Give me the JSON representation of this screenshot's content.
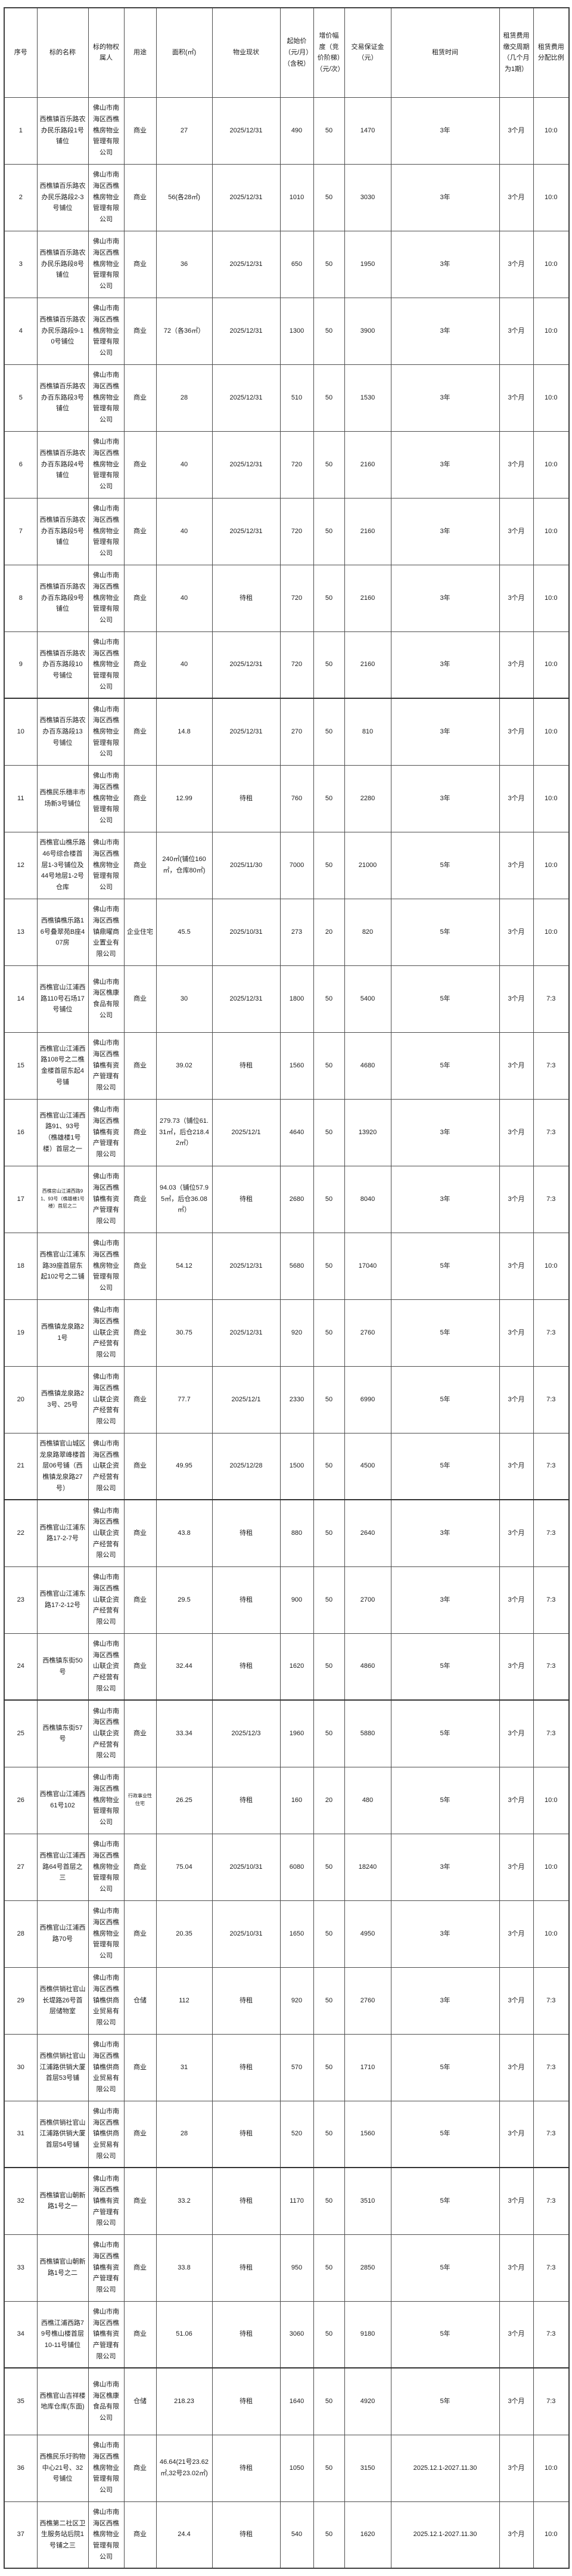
{
  "page": {
    "background": "#ffffff",
    "grid_line_color": "#4d4d4d",
    "text_color": "#1a1a1a"
  },
  "table": {
    "headers": [
      "序号",
      "标的名称",
      "标的物权属人",
      "用途",
      "面积(㎡)",
      "物业现状",
      "起始价（元/月）（含税）",
      "增价幅度（竞价阶梯）（元/次）",
      "交易保证金（元）",
      "租赁时间",
      "租赁费用缴交周期（几个月为1期）",
      "租赁费用分配比例"
    ],
    "rows": [
      [
        "1",
        "西樵镇百乐路农办民乐路段1号铺位",
        "佛山市南海区西樵樵房物业管理有限公司",
        "商业",
        "27",
        "2025/12/31",
        "490",
        "50",
        "1470",
        "3年",
        "3个月",
        "10:0"
      ],
      [
        "2",
        "西樵镇百乐路农办民乐路段2-3号铺位",
        "佛山市南海区西樵樵房物业管理有限公司",
        "商业",
        "56(各28㎡)",
        "2025/12/31",
        "1010",
        "50",
        "3030",
        "3年",
        "3个月",
        "10:0"
      ],
      [
        "3",
        "西樵镇百乐路农办民乐路段8号铺位",
        "佛山市南海区西樵樵房物业管理有限公司",
        "商业",
        "36",
        "2025/12/31",
        "650",
        "50",
        "1950",
        "3年",
        "3个月",
        "10:0"
      ],
      [
        "4",
        "西樵镇百乐路农办民乐路段9-10号铺位",
        "佛山市南海区西樵樵房物业管理有限公司",
        "商业",
        "72（各36㎡）",
        "2025/12/31",
        "1300",
        "50",
        "3900",
        "3年",
        "3个月",
        "10:0"
      ],
      [
        "5",
        "西樵镇百乐路农办百东路段3号铺位",
        "佛山市南海区西樵樵房物业管理有限公司",
        "商业",
        "28",
        "2025/12/31",
        "510",
        "50",
        "1530",
        "3年",
        "3个月",
        "10:0"
      ],
      [
        "6",
        "西樵镇百乐路农办百东路段4号铺位",
        "佛山市南海区西樵樵房物业管理有限公司",
        "商业",
        "40",
        "2025/12/31",
        "720",
        "50",
        "2160",
        "3年",
        "3个月",
        "10:0"
      ],
      [
        "7",
        "西樵镇百乐路农办百东路段5号铺位",
        "佛山市南海区西樵樵房物业管理有限公司",
        "商业",
        "40",
        "2025/12/31",
        "720",
        "50",
        "2160",
        "3年",
        "3个月",
        "10:0"
      ],
      [
        "8",
        "西樵镇百乐路农办百东路段9号铺位",
        "佛山市南海区西樵樵房物业管理有限公司",
        "商业",
        "40",
        "待租",
        "720",
        "50",
        "2160",
        "3年",
        "3个月",
        "10:0"
      ],
      [
        "9",
        "西樵镇百乐路农办百东路段10号铺位",
        "佛山市南海区西樵樵房物业管理有限公司",
        "商业",
        "40",
        "2025/12/31",
        "720",
        "50",
        "2160",
        "3年",
        "3个月",
        "10:0"
      ],
      [
        "10",
        "西樵镇百乐路农办百东路段13号铺位",
        "佛山市南海区西樵樵房物业管理有限公司",
        "商业",
        "14.8",
        "2025/12/31",
        "270",
        "50",
        "810",
        "3年",
        "3个月",
        "10:0"
      ],
      [
        "11",
        "西樵民乐穗丰市场新3号铺位",
        "佛山市南海区西樵樵房物业管理有限公司",
        "商业",
        "12.99",
        "待租",
        "760",
        "50",
        "2280",
        "3年",
        "3个月",
        "10:0"
      ],
      [
        "12",
        "西樵官山樵乐路46号综合楼首层1-3号铺位及44号地层1-2号仓库",
        "佛山市南海区西樵樵房物业管理有限公司",
        "商业",
        "240㎡(铺位160㎡，仓库80㎡)",
        "2025/11/30",
        "7000",
        "50",
        "21000",
        "5年",
        "3个月",
        "10:0"
      ],
      [
        "13",
        "西樵镇樵乐路16号叠翠苑B座407房",
        "佛山市南海区西樵镇鼎曜商业置业有限公司",
        "企业住宅",
        "45.5",
        "2025/10/31",
        "273",
        "20",
        "820",
        "5年",
        "3个月",
        "10:0"
      ],
      [
        "14",
        "西樵官山江浦西路110号石场17号铺位",
        "佛山市南海区樵康食品有限公司",
        "商业",
        "30",
        "2025/12/31",
        "1800",
        "50",
        "5400",
        "5年",
        "3个月",
        "7:3"
      ],
      [
        "15",
        "西樵官山江浦西路108号之二樵金楼首层东起4号铺",
        "佛山市南海区西樵镇樵有资产管理有限公司",
        "商业",
        "39.02",
        "待租",
        "1560",
        "50",
        "4680",
        "5年",
        "3个月",
        "7:3"
      ],
      [
        "16",
        "西樵官山江浦西路91、93号（樵雄楼1号楼）首层之一",
        "佛山市南海区西樵镇樵有资产管理有限公司",
        "商业",
        "279.73（铺位61.31㎡，后仓218.42㎡）",
        "2025/12/1",
        "4640",
        "50",
        "13920",
        "3年",
        "3个月",
        "7:3"
      ],
      [
        "17",
        "西樵官山江浦西路91、93号（樵雄楼1号楼）首层之二",
        "佛山市南海区西樵镇樵有资产管理有限公司",
        "商业",
        "94.03（铺位57.95㎡，后仓36.08㎡）",
        "待租",
        "2680",
        "50",
        "8040",
        "3年",
        "3个月",
        "7:3"
      ],
      [
        "18",
        "西樵官山江浦东路39座首层东起102号之二铺",
        "佛山市南海区西樵樵房物业管理有限公司",
        "商业",
        "54.12",
        "2025/12/31",
        "5680",
        "50",
        "17040",
        "5年",
        "3个月",
        "10:0"
      ],
      [
        "19",
        "西樵镇龙泉路21号",
        "佛山市南海区西樵山联企资产经营有限公司",
        "商业",
        "30.75",
        "2025/12/31",
        "920",
        "50",
        "2760",
        "5年",
        "3个月",
        "7:3"
      ],
      [
        "20",
        "西樵镇龙泉路23号、25号",
        "佛山市南海区西樵山联企资产经营有限公司",
        "商业",
        "77.7",
        "2025/12/1",
        "2330",
        "50",
        "6990",
        "5年",
        "3个月",
        "7:3"
      ],
      [
        "21",
        "西樵镇官山城区龙泉路翠峰楼首层06号铺（西樵镇龙泉路27号）",
        "佛山市南海区西樵山联企资产经营有限公司",
        "商业",
        "49.95",
        "2025/12/28",
        "1500",
        "50",
        "4500",
        "5年",
        "3个月",
        "7:3"
      ],
      [
        "22",
        "西樵官山江浦东路17-2-7号",
        "佛山市南海区西樵山联企资产经营有限公司",
        "商业",
        "43.8",
        "待租",
        "880",
        "50",
        "2640",
        "3年",
        "3个月",
        "7:3"
      ],
      [
        "23",
        "西樵官山江浦东路17-2-12号",
        "佛山市南海区西樵山联企资产经营有限公司",
        "商业",
        "29.5",
        "待租",
        "900",
        "50",
        "2700",
        "3年",
        "3个月",
        "7:3"
      ],
      [
        "24",
        "西樵镇东街50号",
        "佛山市南海区西樵山联企资产经营有限公司",
        "商业",
        "32.44",
        "待租",
        "1620",
        "50",
        "4860",
        "5年",
        "3个月",
        "7:3"
      ],
      [
        "25",
        "西樵镇东街57号",
        "佛山市南海区西樵山联企资产经营有限公司",
        "商业",
        "33.34",
        "2025/12/3",
        "1960",
        "50",
        "5880",
        "5年",
        "3个月",
        "7:3"
      ],
      [
        "26",
        "西樵官山江浦西61号102",
        "佛山市南海区西樵樵房物业管理有限公司",
        "行政事业性住宅",
        "26.25",
        "待租",
        "160",
        "20",
        "480",
        "5年",
        "3个月",
        "10:0"
      ],
      [
        "27",
        "西樵官山江浦西路64号首层之三",
        "佛山市南海区西樵樵房物业管理有限公司",
        "商业",
        "75.04",
        "2025/10/31",
        "6080",
        "50",
        "18240",
        "3年",
        "3个月",
        "10:0"
      ],
      [
        "28",
        "西樵官山江浦西路70号",
        "佛山市南海区西樵樵房物业管理有限公司",
        "商业",
        "20.35",
        "2025/10/31",
        "1650",
        "50",
        "4950",
        "3年",
        "3个月",
        "10:0"
      ],
      [
        "29",
        "西樵供销社官山长堤路26号首层储物室",
        "佛山市南海区西樵镇樵供商业贸易有限公司",
        "仓储",
        "112",
        "待租",
        "920",
        "50",
        "2760",
        "3年",
        "3个月",
        "7:3"
      ],
      [
        "30",
        "西樵供销社官山江浦路供销大厦首层53号铺",
        "佛山市南海区西樵镇樵供商业贸易有限公司",
        "商业",
        "31",
        "待租",
        "570",
        "50",
        "1710",
        "5年",
        "3个月",
        "7:3"
      ],
      [
        "31",
        "西樵供销社官山江浦路供销大厦首层54号铺",
        "佛山市南海区西樵镇樵供商业贸易有限公司",
        "商业",
        "28",
        "待租",
        "520",
        "50",
        "1560",
        "5年",
        "3个月",
        "7:3"
      ],
      [
        "32",
        "西樵镇官山朝新路1号之一",
        "佛山市南海区西樵镇樵有资产管理有限公司",
        "商业",
        "33.2",
        "待租",
        "1170",
        "50",
        "3510",
        "5年",
        "3个月",
        "7:3"
      ],
      [
        "33",
        "西樵镇官山朝新路1号之二",
        "佛山市南海区西樵镇樵有资产管理有限公司",
        "商业",
        "33.8",
        "待租",
        "950",
        "50",
        "2850",
        "5年",
        "3个月",
        "7:3"
      ],
      [
        "34",
        "西樵江浦西路79号樵山楼首层10-11号铺位",
        "佛山市南海区西樵镇樵有资产管理有限公司",
        "商业",
        "51.06",
        "待租",
        "3060",
        "50",
        "9180",
        "5年",
        "3个月",
        "7:3"
      ],
      [
        "35",
        "西樵官山吉祥楼地库仓库(东面)",
        "佛山市南海区樵康食品有限公司",
        "仓储",
        "218.23",
        "待租",
        "1640",
        "50",
        "4920",
        "5年",
        "3个月",
        "7:3"
      ],
      [
        "36",
        "西樵民乐圩购物中心21号、32号铺位",
        "佛山市南海区西樵樵房物业管理有限公司",
        "商业",
        "46.64(21号23.62㎡,32号23.02㎡)",
        "待租",
        "1050",
        "50",
        "3150",
        "2025.12.1-2027.11.30",
        "3个月",
        "10:0"
      ],
      [
        "37",
        "西樵第二社区卫生服务站后院1号铺之三",
        "佛山市南海区西樵樵房物业管理有限公司",
        "商业",
        "24.4",
        "待租",
        "540",
        "50",
        "1620",
        "2025.12.1-2027.11.30",
        "3个月",
        "10:0"
      ]
    ]
  },
  "formatting": {
    "small_font_cells": [
      {
        "row": 17,
        "col": 2
      },
      {
        "row": 26,
        "col": 4
      }
    ],
    "thick_border_above_rows": [
      10,
      22,
      25,
      32,
      35
    ]
  }
}
